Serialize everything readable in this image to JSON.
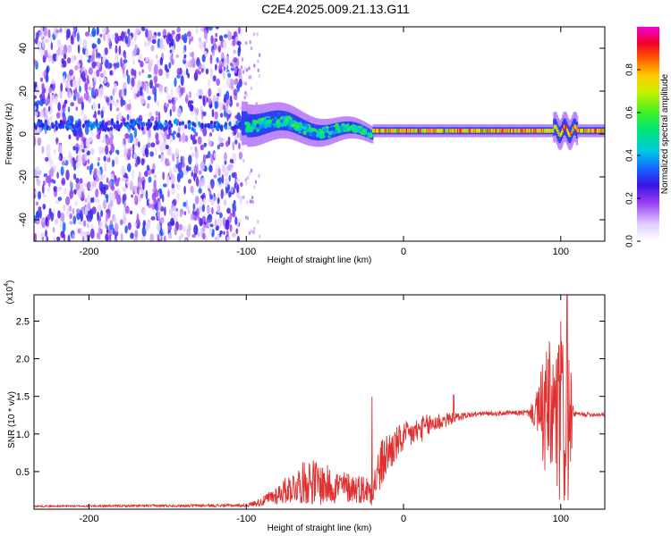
{
  "title": "C2E4.2025.009.21.13.G11",
  "chart_data": [
    {
      "type": "heatmap",
      "panel": "top",
      "xlabel": "Height of straight line (km)",
      "ylabel": "Frequency (Hz)",
      "xlim": [
        -235,
        128
      ],
      "ylim": [
        -50,
        50
      ],
      "xticks": [
        -200,
        -100,
        0,
        100
      ],
      "yticks": [
        -40,
        -20,
        0,
        20,
        40
      ],
      "colorbar": {
        "label": "Normalized spectral amplitude",
        "range": [
          0.0,
          1.0
        ],
        "ticks": [
          0.0,
          0.2,
          0.4,
          0.6,
          0.8
        ]
      },
      "regions": [
        {
          "name": "broadband noise",
          "x_range": [
            -235,
            -103
          ],
          "freq_range": [
            -50,
            50
          ],
          "amplitude_range": [
            0.05,
            0.35
          ]
        },
        {
          "name": "transition",
          "x_range": [
            -100,
            -20
          ],
          "freq_center": [
            6,
            0
          ],
          "bandwidth_hz": [
            10,
            4
          ],
          "amplitude_range": [
            0.3,
            0.6
          ]
        },
        {
          "name": "stable carrier",
          "x_range": [
            -20,
            128
          ],
          "freq_center": 1.5,
          "bandwidth_hz": 3,
          "amplitude_range": [
            0.75,
            1.0
          ]
        }
      ]
    },
    {
      "type": "line",
      "panel": "bottom",
      "xlabel": "Height of straight line (km)",
      "ylabel": "SNR (10 * v/v)",
      "y_multiplier": "(x10",
      "y_multiplier_exp": "4",
      "y_multiplier_close": ")",
      "xlim": [
        -235,
        128
      ],
      "ylim": [
        0,
        2.85
      ],
      "xticks": [
        -200,
        -100,
        0,
        100
      ],
      "yticks": [
        0.5,
        1.0,
        1.5,
        2.0,
        2.5
      ],
      "ytick_labels": [
        "0.5",
        "1.0",
        "1.5",
        "2.0",
        "2.5"
      ],
      "color": "#e03030",
      "envelope": {
        "x": [
          -235,
          -100,
          -90,
          -70,
          -60,
          -50,
          -40,
          -30,
          -20,
          -15,
          -10,
          0,
          10,
          20,
          30,
          40,
          50,
          60,
          70,
          80,
          85,
          90,
          95,
          100,
          105,
          108,
          112,
          128
        ],
        "y": [
          0.04,
          0.05,
          0.1,
          0.3,
          0.38,
          0.32,
          0.3,
          0.28,
          0.25,
          0.55,
          0.75,
          0.95,
          1.05,
          1.15,
          1.2,
          1.25,
          1.27,
          1.27,
          1.28,
          1.28,
          1.28,
          1.28,
          1.2,
          1.15,
          1.1,
          1.27,
          1.26,
          1.26
        ],
        "amp": [
          0.01,
          0.02,
          0.06,
          0.22,
          0.32,
          0.28,
          0.22,
          0.2,
          0.2,
          0.35,
          0.3,
          0.2,
          0.18,
          0.15,
          0.08,
          0.04,
          0.03,
          0.03,
          0.03,
          0.05,
          0.3,
          0.9,
          1.1,
          1.2,
          1.2,
          0.05,
          0.03,
          0.03
        ]
      },
      "peaks": [
        {
          "x": -20,
          "y": 1.5
        },
        {
          "x": 32,
          "y": 1.52
        },
        {
          "x": 92,
          "y": 2.0
        },
        {
          "x": 100,
          "y": 2.5
        },
        {
          "x": 104,
          "y": 2.85
        }
      ]
    }
  ]
}
